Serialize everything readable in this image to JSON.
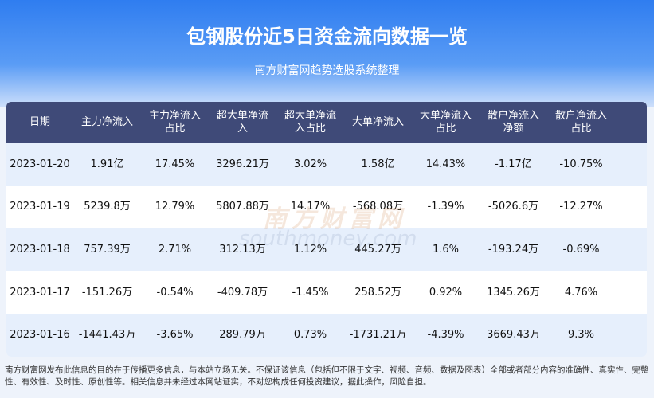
{
  "header": {
    "title": "包钢股份近5日资金流向数据一览",
    "subtitle": "南方财富网趋势选股系统整理"
  },
  "table": {
    "columns": [
      "日期",
      "主力净流入",
      "主力净流入\n占比",
      "超大单净流\n入",
      "超大单净流\n入占比",
      "大单净流入",
      "大单净流入\n占比",
      "散户净流入\n净额",
      "散户净流入\n占比"
    ],
    "rows": [
      [
        "2023-01-20",
        "1.91亿",
        "17.45%",
        "3296.21万",
        "3.02%",
        "1.58亿",
        "14.43%",
        "-1.17亿",
        "-10.75%"
      ],
      [
        "2023-01-19",
        "5239.8万",
        "12.79%",
        "5807.88万",
        "14.17%",
        "-568.08万",
        "-1.39%",
        "-5026.6万",
        "-12.27%"
      ],
      [
        "2023-01-18",
        "757.39万",
        "2.71%",
        "312.13万",
        "1.12%",
        "445.27万",
        "1.6%",
        "-193.24万",
        "-0.69%"
      ],
      [
        "2023-01-17",
        "-151.26万",
        "-0.54%",
        "-409.78万",
        "-1.45%",
        "258.52万",
        "0.92%",
        "1345.26万",
        "4.76%"
      ],
      [
        "2023-01-16",
        "-1441.43万",
        "-3.65%",
        "289.79万",
        "0.73%",
        "-1731.21万",
        "-4.39%",
        "3669.43万",
        "9.3%"
      ]
    ]
  },
  "watermark": {
    "name": "南方财富网",
    "url": "southmoney.com"
  },
  "footer": "南方财富网发布此信息的目的在于传播更多信息，与本站立场无关。不保证该信息（包括但不限于文字、视频、音频、数据及图表）全部或者部分内容的准确性、真实性、完整性、有效性、及时性、原创性等。相关信息并未经过本网站证实，不对您构成任何投资建议，据此操作，风险自担。"
}
